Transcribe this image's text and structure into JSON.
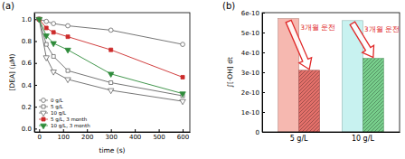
{
  "chart_data": [
    {
      "type": "line",
      "title": "(a)",
      "xlabel": "time (s)",
      "ylabel": "[DEA] (μM)",
      "x": [
        0,
        30,
        60,
        120,
        300,
        600
      ],
      "series": [
        {
          "name": "0 g/L",
          "color": "#666666",
          "marker": "circle-open",
          "values": [
            1.0,
            0.98,
            0.96,
            0.94,
            0.9,
            0.77
          ]
        },
        {
          "name": "5 g/L",
          "color": "#666666",
          "marker": "square-open",
          "values": [
            1.0,
            0.77,
            0.66,
            0.53,
            0.42,
            0.3
          ]
        },
        {
          "name": "10 g/L",
          "color": "#666666",
          "marker": "triangle-down-open",
          "values": [
            1.0,
            0.65,
            0.52,
            0.45,
            0.35,
            0.25
          ]
        },
        {
          "name": "5 g/L, 3 month",
          "color": "#cc2a2a",
          "marker": "square",
          "values": [
            1.0,
            0.92,
            0.88,
            0.84,
            0.72,
            0.47
          ]
        },
        {
          "name": "10 g/L, 3 month",
          "color": "#2e8b3a",
          "marker": "triangle-down",
          "values": [
            1.0,
            0.85,
            0.78,
            0.72,
            0.5,
            0.32
          ]
        }
      ],
      "xlim": [
        -20,
        630
      ],
      "xticks": [
        0,
        100,
        200,
        300,
        400,
        500,
        600
      ],
      "ylim": [
        -0.03,
        1.06
      ],
      "yticks": [
        {
          "value": 0,
          "label": "0.0"
        },
        {
          "value": 0.2,
          "label": "0.2"
        },
        {
          "value": 0.4,
          "label": "0.4"
        },
        {
          "value": 0.6,
          "label": "0.6"
        },
        {
          "value": 0.8,
          "label": "0.8"
        },
        {
          "value": 1.0,
          "label": "1.0"
        }
      ],
      "legend": "lower left"
    },
    {
      "type": "bar",
      "title": "(b)",
      "ylabel": "∫[·OH] dt",
      "categories": [
        "5 g/L",
        "10 g/L"
      ],
      "series": [
        {
          "colors": [
            "#f6b8b0",
            "#c8f2f0"
          ],
          "values": [
            5.7e-10,
            5.6e-10
          ]
        },
        {
          "colors": [
            "#e3706a",
            "#78cf8c"
          ],
          "values": [
            3.1e-10,
            3.7e-10
          ]
        }
      ],
      "ylim": [
        0,
        6e-10
      ],
      "yticks": [
        0,
        {
          "value": 1e-10,
          "label": "1e-10"
        },
        {
          "value": 2e-10,
          "label": "2e-10"
        },
        {
          "value": 3e-10,
          "label": "3e-10"
        },
        {
          "value": 4e-10,
          "label": "4e-10"
        },
        {
          "value": 5e-10,
          "label": "5e-10"
        },
        {
          "value": 6e-10,
          "label": "6e-10"
        }
      ],
      "annotations": [
        "3개월 운전",
        "3개월 운전"
      ]
    }
  ]
}
